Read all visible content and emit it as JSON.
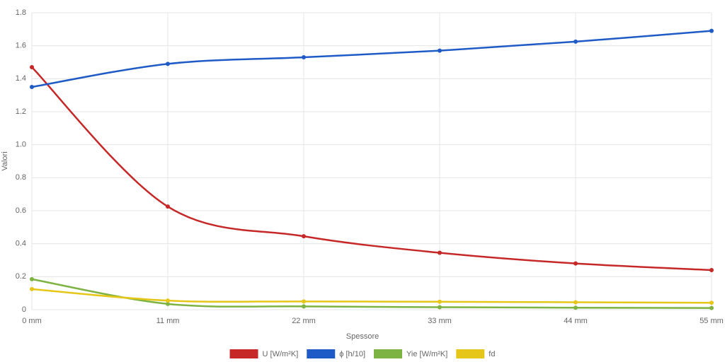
{
  "chart_data": {
    "type": "line",
    "x_label": "Spessore",
    "y_label": "Valori",
    "categories": [
      "0 mm",
      "11 mm",
      "22 mm",
      "33 mm",
      "44 mm",
      "55 mm"
    ],
    "series": [
      {
        "name": "U [W/m²K]",
        "color": "#c62828",
        "values": [
          1.47,
          0.625,
          0.445,
          0.345,
          0.28,
          0.24
        ]
      },
      {
        "name": "ϕ [h/10]",
        "color": "#1f5bc6",
        "values": [
          1.35,
          1.49,
          1.53,
          1.57,
          1.625,
          1.69
        ]
      },
      {
        "name": "Yie [W/m²K]",
        "color": "#7cb342",
        "values": [
          0.185,
          0.035,
          0.02,
          0.015,
          0.012,
          0.01
        ]
      },
      {
        "name": "fd",
        "color": "#e6c619",
        "values": [
          0.125,
          0.055,
          0.05,
          0.048,
          0.045,
          0.042
        ]
      }
    ],
    "ylim": [
      0,
      1.8
    ],
    "yticks": [
      0,
      0.2,
      0.4,
      0.6,
      0.8,
      {
        "value": 1,
        "label": "1.0"
      },
      1.2,
      1.4,
      1.6,
      1.8
    ],
    "grid": true,
    "legend": "bottom"
  }
}
